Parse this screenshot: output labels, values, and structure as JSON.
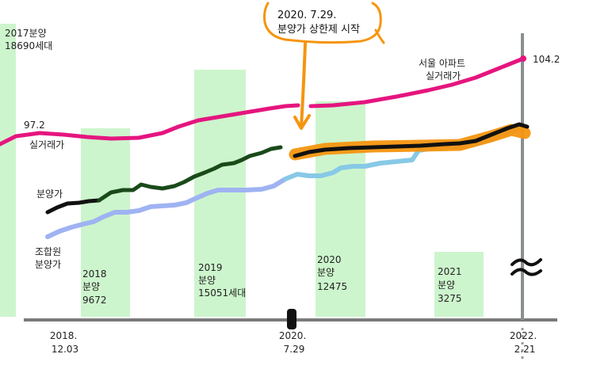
{
  "chart_data": {
    "type": "line",
    "x": [
      "2018-12",
      "2020-07",
      "2022-02"
    ],
    "x_tick_labels": [
      {
        "line1": "2018.",
        "line2": "12.03"
      },
      {
        "line1": "2020.",
        "line2": "7.29"
      },
      {
        "line1": "2022.",
        "line2": "2.21"
      }
    ],
    "series": [
      {
        "name": "서울 아파트 실거래가",
        "label_line1": "서울 아파트",
        "label_line2": "실거래가",
        "start_value": "97.2",
        "start_label": "실거래가",
        "end_value": "104.2",
        "color": "#e5157f"
      },
      {
        "name": "분양가",
        "label": "분양가",
        "color": "#111111",
        "color_start": "#1a4a1a",
        "post_cap_highlight": "#f5950f"
      },
      {
        "name": "조합원 분양가",
        "label_line1": "조합원",
        "label_line2": "분양가",
        "color": "#9fb3f2",
        "color_mid": "#87c9e6"
      }
    ],
    "bars": [
      {
        "label_lines": [
          "2017분양",
          "18690세대"
        ],
        "value": 18690
      },
      {
        "label_lines": [
          "2018",
          "분양",
          "9672"
        ],
        "value": 9672
      },
      {
        "label_lines": [
          "2019",
          "분양",
          "15051세대"
        ],
        "value": 15051
      },
      {
        "label_lines": [
          "2020",
          "분양",
          "12475"
        ],
        "value": 12475
      },
      {
        "label_lines": [
          "2021",
          "분양",
          "3275"
        ],
        "value": 3275
      }
    ],
    "bar_color": "#cdf5cd",
    "annotation": {
      "line1": "2020. 7.29.",
      "line2": "분양가 상한제 시작",
      "color": "#f5950f"
    },
    "axis_break_symbol": "≈",
    "grid": false
  }
}
